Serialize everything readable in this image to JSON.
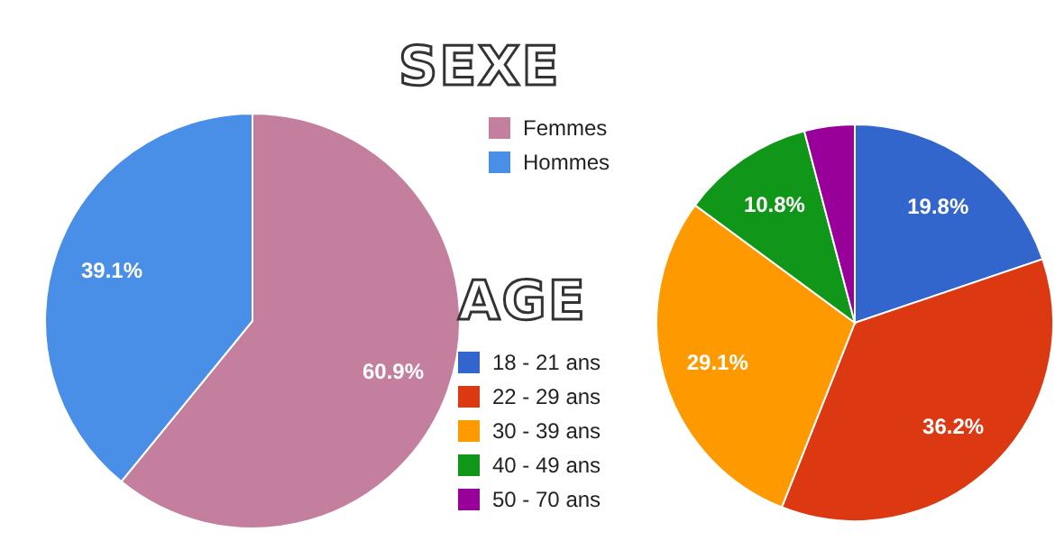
{
  "chart_data": [
    {
      "type": "pie",
      "title": "SEXE",
      "categories": [
        "Femmes",
        "Hommes"
      ],
      "values": [
        60.9,
        39.1
      ],
      "colors": [
        "#c47f9f",
        "#4a8fe7"
      ],
      "value_labels": [
        "60.9%",
        "39.1%"
      ],
      "legend": "top right"
    },
    {
      "type": "pie",
      "title": "AGE",
      "categories": [
        "18 - 21 ans",
        "22 - 29 ans",
        "30 - 39 ans",
        "40 - 49 ans",
        "50 - 70 ans"
      ],
      "values": [
        19.8,
        36.2,
        29.1,
        10.8,
        4.1
      ],
      "colors": [
        "#3366cc",
        "#dc3912",
        "#ff9900",
        "#109618",
        "#990099"
      ],
      "value_labels": [
        "19.8%",
        "36.2%",
        "29.1%",
        "10.8%",
        null
      ],
      "legend": "bottom left"
    }
  ]
}
